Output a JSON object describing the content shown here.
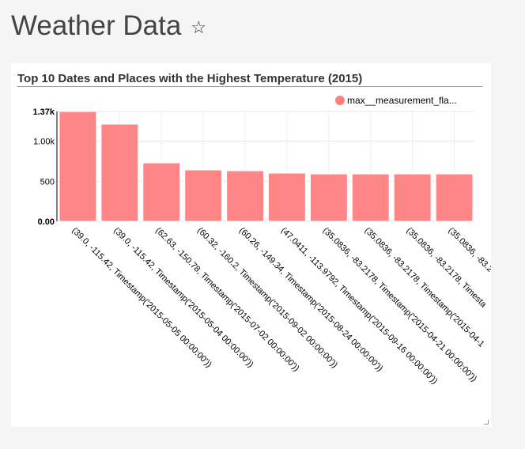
{
  "page": {
    "title": "Weather Data",
    "favorite_icon": "star-icon"
  },
  "chart_data": {
    "type": "bar",
    "title": "Top 10 Dates and Places with the Highest Temperature (2015)",
    "legend": {
      "position": "top-right",
      "entries": [
        "max__measurement_fla..."
      ]
    },
    "series": [
      {
        "name": "max__measurement_fla...",
        "color": "#ff7f7f",
        "values": [
          1370,
          1212,
          729,
          641,
          631,
          601,
          591,
          591,
          591,
          591
        ]
      }
    ],
    "categories": [
      "(39.0, -115.42, Timestamp('2015-05-05 00:00:00'))",
      "(39.0, -115.42, Timestamp('2015-05-04 00:00:00'))",
      "(62.63, -150.78, Timestamp('2015-07-02 00:00:00'))",
      "(60.32, -160.2, Timestamp('2015-09-02 00:00:00'))",
      "(60.26, -149.34, Timestamp('2015-08-24 00:00:00'))",
      "(47.0411, -113.9792, Timestamp('2015-09-16 00:00:00'))",
      "(35.0836, -83.2178, Timestamp('2015-04-21 00:00:00'))",
      "(35.0836, -83.2178, Timestamp('2015-04-1",
      "(35.0836, -83.2178, Timesta",
      "(35.0836, -83.2"
    ],
    "yticks": [
      {
        "value": 0,
        "label": "0.00"
      },
      {
        "value": 500,
        "label": "500"
      },
      {
        "value": 1000,
        "label": "1.00k"
      },
      {
        "value": 1370,
        "label": "1.37k"
      }
    ],
    "ylim": [
      0,
      1370
    ],
    "grid": true
  }
}
